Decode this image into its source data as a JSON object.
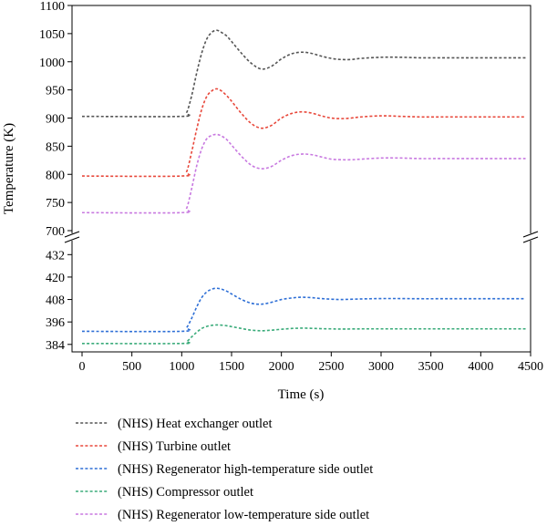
{
  "chart_data": {
    "type": "line",
    "title": "",
    "xlabel": "Time (s)",
    "ylabel": "Temperature (K)",
    "xlim": [
      0,
      4500
    ],
    "x_ticks": [
      0,
      500,
      1000,
      1500,
      2000,
      2500,
      3000,
      3500,
      4000,
      4500
    ],
    "y_axis_break": true,
    "upper_panel": {
      "ylim": [
        700,
        1100
      ],
      "y_ticks": [
        700,
        750,
        800,
        850,
        900,
        950,
        1000,
        1050,
        1100
      ]
    },
    "lower_panel": {
      "ylim": [
        380,
        438
      ],
      "y_ticks": [
        384,
        396,
        408,
        420,
        432
      ]
    },
    "grid": false,
    "legend_position": "bottom",
    "series": [
      {
        "name": "(NHS) Heat exchanger outlet",
        "color": "#555555",
        "panel": "upper",
        "x": [
          0,
          1000,
          1050,
          1100,
          1150,
          1200,
          1250,
          1300,
          1350,
          1400,
          1450,
          1500,
          1600,
          1700,
          1800,
          1900,
          2000,
          2100,
          2200,
          2300,
          2400,
          2500,
          2600,
          2700,
          2800,
          3000,
          3200,
          3400,
          3600,
          3800,
          4000,
          4200,
          4450
        ],
        "y": [
          903,
          903,
          910,
          940,
          980,
          1015,
          1040,
          1052,
          1056,
          1052,
          1046,
          1036,
          1015,
          997,
          987,
          992,
          1005,
          1014,
          1017,
          1015,
          1010,
          1006,
          1004,
          1004,
          1006,
          1008,
          1008,
          1007,
          1007,
          1007,
          1007,
          1007,
          1007
        ]
      },
      {
        "name": "(NHS) Turbine outlet",
        "color": "#e8483b",
        "panel": "upper",
        "x": [
          0,
          1000,
          1050,
          1100,
          1150,
          1200,
          1250,
          1300,
          1350,
          1400,
          1450,
          1500,
          1600,
          1700,
          1800,
          1900,
          2000,
          2100,
          2200,
          2300,
          2400,
          2500,
          2600,
          2700,
          2800,
          3000,
          3200,
          3400,
          3600,
          3800,
          4000,
          4200,
          4450
        ],
        "y": [
          797,
          797,
          805,
          840,
          880,
          915,
          938,
          948,
          952,
          948,
          940,
          930,
          908,
          890,
          882,
          887,
          900,
          908,
          911,
          909,
          904,
          900,
          899,
          900,
          902,
          904,
          903,
          902,
          902,
          902,
          902,
          902,
          902
        ]
      },
      {
        "name": "(NHS) Regenerator high-temperature side outlet",
        "color": "#2e6fd6",
        "panel": "lower",
        "x": [
          0,
          1000,
          1050,
          1100,
          1150,
          1200,
          1250,
          1300,
          1350,
          1400,
          1450,
          1500,
          1600,
          1700,
          1800,
          1900,
          2000,
          2100,
          2200,
          2300,
          2400,
          2500,
          2600,
          2800,
          3000,
          3200,
          3400,
          3600,
          4000,
          4450
        ],
        "y": [
          391,
          391,
          393,
          398,
          404,
          409,
          412,
          413.5,
          414,
          413.5,
          412.5,
          411,
          408,
          406,
          405.5,
          406.5,
          408,
          408.8,
          409.2,
          409,
          408.5,
          408.2,
          408,
          408.3,
          408.5,
          408.5,
          408.4,
          408.4,
          408.4,
          408.4
        ]
      },
      {
        "name": "(NHS) Compressor outlet",
        "color": "#3aab7a",
        "panel": "lower",
        "x": [
          0,
          1000,
          1050,
          1100,
          1150,
          1200,
          1250,
          1300,
          1350,
          1400,
          1450,
          1500,
          1600,
          1700,
          1800,
          1900,
          2000,
          2100,
          2200,
          2300,
          2400,
          2500,
          2600,
          2800,
          3000,
          3200,
          3400,
          3600,
          4000,
          4450
        ],
        "y": [
          384.5,
          384.5,
          385.5,
          388,
          390.5,
          392.5,
          393.6,
          394.2,
          394.4,
          394.3,
          394,
          393.5,
          392.5,
          391.6,
          391.3,
          391.6,
          392.1,
          392.5,
          392.7,
          392.6,
          392.4,
          392.3,
          392.2,
          392.3,
          392.3,
          392.3,
          392.3,
          392.3,
          392.3,
          392.3
        ]
      },
      {
        "name": "(NHS) Regenerator low-temperature side outlet",
        "color": "#c879e0",
        "panel": "upper",
        "x": [
          0,
          1000,
          1050,
          1100,
          1150,
          1200,
          1250,
          1300,
          1350,
          1400,
          1450,
          1500,
          1600,
          1700,
          1800,
          1900,
          2000,
          2100,
          2200,
          2300,
          2400,
          2500,
          2600,
          2700,
          2800,
          3000,
          3200,
          3400,
          3600,
          3800,
          4000,
          4200,
          4450
        ],
        "y": [
          732,
          732,
          740,
          775,
          815,
          845,
          863,
          869,
          871,
          868,
          862,
          852,
          832,
          816,
          810,
          814,
          825,
          833,
          836,
          835,
          831,
          827,
          826,
          826,
          827,
          829,
          829,
          828,
          828,
          828,
          828,
          828,
          828
        ]
      }
    ]
  }
}
